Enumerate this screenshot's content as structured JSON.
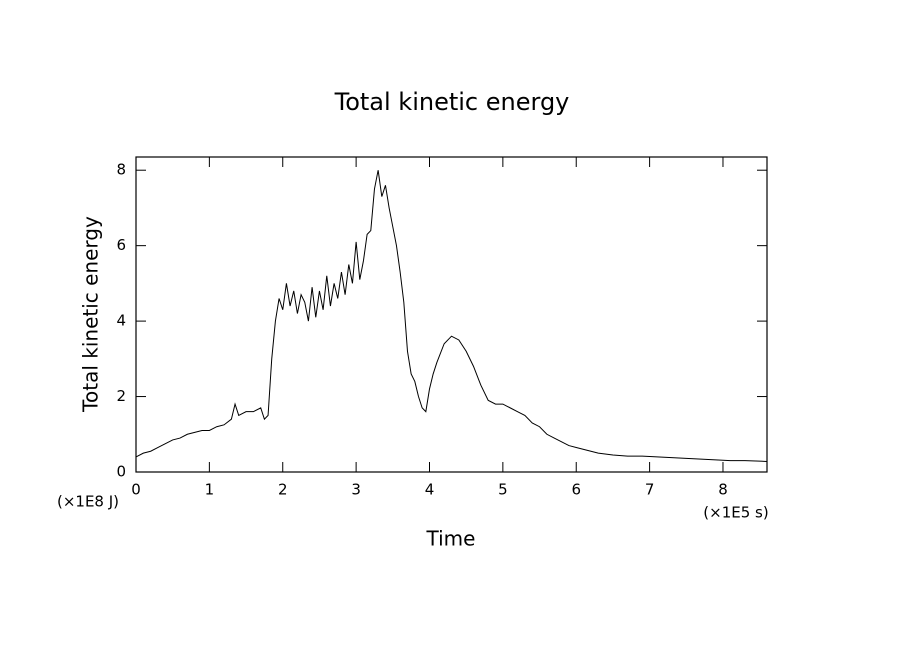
{
  "chart_data": {
    "type": "line",
    "title": "Total kinetic energy",
    "x_label": "Time",
    "y_label": "Total kinetic energy",
    "x_unit": "(×1E5 s)",
    "y_unit": "(×1E8 J)",
    "x": [
      0,
      0.1,
      0.2,
      0.3,
      0.4,
      0.5,
      0.6,
      0.7,
      0.8,
      0.9,
      1.0,
      1.1,
      1.2,
      1.3,
      1.35,
      1.4,
      1.5,
      1.6,
      1.7,
      1.75,
      1.8,
      1.85,
      1.9,
      1.95,
      2.0,
      2.05,
      2.1,
      2.15,
      2.2,
      2.25,
      2.3,
      2.35,
      2.4,
      2.45,
      2.5,
      2.55,
      2.6,
      2.65,
      2.7,
      2.75,
      2.8,
      2.85,
      2.9,
      2.95,
      3.0,
      3.05,
      3.1,
      3.15,
      3.2,
      3.25,
      3.3,
      3.35,
      3.4,
      3.45,
      3.5,
      3.55,
      3.6,
      3.65,
      3.7,
      3.75,
      3.8,
      3.85,
      3.9,
      3.95,
      4.0,
      4.05,
      4.1,
      4.2,
      4.3,
      4.4,
      4.5,
      4.6,
      4.7,
      4.8,
      4.9,
      5.0,
      5.1,
      5.2,
      5.3,
      5.4,
      5.5,
      5.6,
      5.7,
      5.8,
      5.9,
      6.0,
      6.1,
      6.2,
      6.3,
      6.5,
      6.7,
      6.9,
      7.1,
      7.3,
      7.5,
      7.7,
      7.9,
      8.1,
      8.3,
      8.6
    ],
    "series": [
      {
        "name": "Total kinetic energy",
        "color": "#000000",
        "values": [
          0.4,
          0.5,
          0.55,
          0.65,
          0.75,
          0.85,
          0.9,
          1.0,
          1.05,
          1.1,
          1.1,
          1.2,
          1.25,
          1.4,
          1.8,
          1.5,
          1.6,
          1.6,
          1.7,
          1.4,
          1.5,
          3.0,
          4.0,
          4.6,
          4.3,
          5.0,
          4.4,
          4.8,
          4.2,
          4.7,
          4.5,
          4.0,
          4.9,
          4.1,
          4.8,
          4.3,
          5.2,
          4.4,
          5.0,
          4.6,
          5.3,
          4.7,
          5.5,
          5.0,
          6.1,
          5.1,
          5.6,
          6.3,
          6.4,
          7.5,
          8.0,
          7.3,
          7.6,
          7.0,
          6.5,
          6.0,
          5.3,
          4.5,
          3.2,
          2.6,
          2.4,
          2.0,
          1.7,
          1.6,
          2.2,
          2.6,
          2.9,
          3.4,
          3.6,
          3.5,
          3.2,
          2.8,
          2.3,
          1.9,
          1.8,
          1.8,
          1.7,
          1.6,
          1.5,
          1.3,
          1.2,
          1.0,
          0.9,
          0.8,
          0.7,
          0.65,
          0.6,
          0.55,
          0.5,
          0.45,
          0.42,
          0.42,
          0.4,
          0.38,
          0.36,
          0.34,
          0.32,
          0.3,
          0.3,
          0.28
        ]
      }
    ],
    "xlim": [
      0,
      8.6
    ],
    "ylim": [
      0,
      8.35
    ],
    "xticks": [
      0,
      1,
      2,
      3,
      4,
      5,
      6,
      7,
      8
    ],
    "yticks": [
      0,
      2,
      4,
      6,
      8
    ]
  }
}
